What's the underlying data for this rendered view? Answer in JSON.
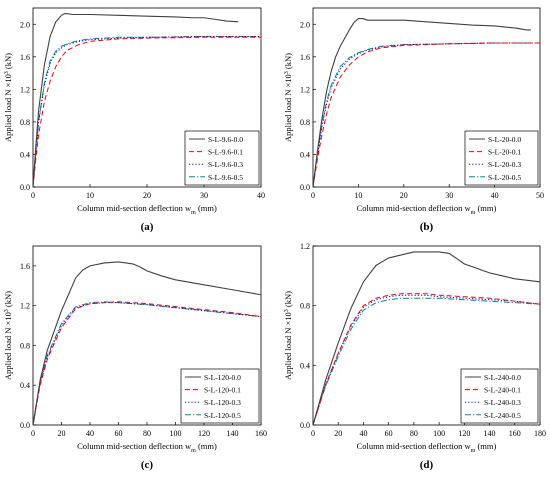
{
  "colors": {
    "series": [
      "#404040",
      "#ff0000",
      "#0000ff",
      "#008b8b"
    ],
    "axis": "#000000",
    "legend_border": "#000000"
  },
  "chart_data": [
    {
      "type": "line",
      "panel_label": "(a)",
      "xlabel": "Column mid-section deflection w",
      "xlabel_sub": "m",
      "xlabel_unit": " (mm)",
      "ylabel": "Applied load N ×10",
      "ylabel_sup": "3",
      "ylabel_unit": " (kN)",
      "xlim": [
        0,
        40
      ],
      "ylim": [
        0,
        2.2
      ],
      "xticks": [
        0,
        10,
        20,
        30,
        40
      ],
      "yticks": [
        0.0,
        0.4,
        0.8,
        1.2,
        1.6,
        2.0
      ],
      "ytick_labels": [
        "0.0",
        "0.4",
        "0.8",
        "1.2",
        "1.6",
        "2.0"
      ],
      "grid": false,
      "legend_position": "lower-right",
      "series": [
        {
          "name": "S-L-9.6-0.0",
          "style": "solid",
          "x": [
            0,
            0.5,
            1,
            2,
            3,
            4,
            5,
            5.5,
            6,
            7,
            8,
            10,
            15,
            20,
            25,
            28,
            30,
            32,
            34,
            36
          ],
          "y": [
            0,
            0.5,
            0.95,
            1.5,
            1.85,
            2.03,
            2.11,
            2.13,
            2.13,
            2.12,
            2.12,
            2.12,
            2.11,
            2.1,
            2.09,
            2.08,
            2.08,
            2.06,
            2.04,
            2.03
          ]
        },
        {
          "name": "S-L-9.6-0.1",
          "style": "dashed",
          "x": [
            0,
            0.5,
            1,
            2,
            3,
            4,
            5,
            6,
            8,
            10,
            15,
            20,
            30,
            40
          ],
          "y": [
            0,
            0.35,
            0.65,
            1.05,
            1.3,
            1.48,
            1.6,
            1.68,
            1.75,
            1.79,
            1.82,
            1.83,
            1.84,
            1.84
          ]
        },
        {
          "name": "S-L-9.6-0.3",
          "style": "dotted",
          "x": [
            0,
            0.5,
            1,
            2,
            3,
            4,
            5,
            6,
            8,
            10,
            15,
            20,
            30,
            40
          ],
          "y": [
            0,
            0.4,
            0.8,
            1.25,
            1.52,
            1.65,
            1.71,
            1.75,
            1.79,
            1.81,
            1.83,
            1.84,
            1.85,
            1.85
          ]
        },
        {
          "name": "S-L-9.6-0.5",
          "style": "dashdot",
          "x": [
            0,
            0.5,
            1,
            2,
            3,
            4,
            5,
            6,
            8,
            10,
            15,
            20,
            30,
            40
          ],
          "y": [
            0,
            0.42,
            0.82,
            1.28,
            1.55,
            1.67,
            1.73,
            1.76,
            1.8,
            1.82,
            1.84,
            1.84,
            1.85,
            1.85
          ]
        }
      ]
    },
    {
      "type": "line",
      "panel_label": "(b)",
      "xlabel": "Column mid-section deflection w",
      "xlabel_sub": "m",
      "xlabel_unit": " (mm)",
      "ylabel": "Applied load N ×10",
      "ylabel_sup": "3",
      "ylabel_unit": " (kN)",
      "xlim": [
        0,
        50
      ],
      "ylim": [
        0,
        2.2
      ],
      "xticks": [
        0,
        10,
        20,
        30,
        40,
        50
      ],
      "yticks": [
        0.0,
        0.4,
        0.8,
        1.2,
        1.6,
        2.0
      ],
      "ytick_labels": [
        "0.0",
        "0.4",
        "0.8",
        "1.2",
        "1.6",
        "2.0"
      ],
      "grid": false,
      "legend_position": "lower-right",
      "series": [
        {
          "name": "S-L-20-0.0",
          "style": "solid",
          "x": [
            0,
            1,
            2,
            3,
            4,
            5,
            6,
            7,
            8,
            9,
            10,
            11,
            12,
            15,
            20,
            25,
            30,
            35,
            40,
            45,
            47,
            48
          ],
          "y": [
            0,
            0.45,
            0.85,
            1.18,
            1.42,
            1.6,
            1.73,
            1.83,
            1.93,
            2.02,
            2.07,
            2.07,
            2.05,
            2.05,
            2.05,
            2.03,
            2.01,
            1.99,
            1.98,
            1.95,
            1.93,
            1.93
          ]
        },
        {
          "name": "S-L-20-0.1",
          "style": "dashed",
          "x": [
            0,
            1,
            2,
            3,
            4,
            6,
            8,
            10,
            12,
            15,
            20,
            30,
            40,
            50
          ],
          "y": [
            0,
            0.35,
            0.65,
            0.9,
            1.1,
            1.35,
            1.5,
            1.6,
            1.66,
            1.71,
            1.74,
            1.76,
            1.77,
            1.77
          ]
        },
        {
          "name": "S-L-20-0.3",
          "style": "dotted",
          "x": [
            0,
            1,
            2,
            3,
            4,
            6,
            8,
            10,
            12,
            15,
            20,
            30,
            40,
            50
          ],
          "y": [
            0,
            0.4,
            0.75,
            1.02,
            1.22,
            1.45,
            1.57,
            1.64,
            1.68,
            1.72,
            1.75,
            1.76,
            1.77,
            1.77
          ]
        },
        {
          "name": "S-L-20-0.5",
          "style": "dashdot",
          "x": [
            0,
            1,
            2,
            3,
            4,
            6,
            8,
            10,
            12,
            15,
            20,
            30,
            40,
            50
          ],
          "y": [
            0,
            0.42,
            0.78,
            1.05,
            1.25,
            1.48,
            1.59,
            1.65,
            1.69,
            1.73,
            1.75,
            1.76,
            1.77,
            1.77
          ]
        }
      ]
    },
    {
      "type": "line",
      "panel_label": "(c)",
      "xlabel": "Column mid-section deflection w",
      "xlabel_sub": "m",
      "xlabel_unit": " (mm)",
      "ylabel": "Applied load N ×10",
      "ylabel_sup": "3",
      "ylabel_unit": " (kN)",
      "xlim": [
        0,
        160
      ],
      "ylim": [
        0,
        1.8
      ],
      "xticks": [
        0,
        20,
        40,
        60,
        80,
        100,
        120,
        140,
        160
      ],
      "yticks": [
        0.0,
        0.4,
        0.8,
        1.2,
        1.6
      ],
      "ytick_labels": [
        "0.0",
        "0.4",
        "0.8",
        "1.2",
        "1.6"
      ],
      "grid": false,
      "legend_position": "lower-right",
      "series": [
        {
          "name": "S-L-120-0.0",
          "style": "solid",
          "x": [
            0,
            5,
            10,
            20,
            30,
            35,
            40,
            50,
            60,
            70,
            75,
            80,
            90,
            100,
            120,
            140,
            160
          ],
          "y": [
            0,
            0.45,
            0.75,
            1.15,
            1.48,
            1.56,
            1.6,
            1.63,
            1.64,
            1.62,
            1.59,
            1.55,
            1.5,
            1.46,
            1.41,
            1.36,
            1.31
          ]
        },
        {
          "name": "S-L-120-0.1",
          "style": "dashed",
          "x": [
            0,
            5,
            10,
            20,
            30,
            40,
            50,
            60,
            70,
            80,
            100,
            120,
            140,
            160
          ],
          "y": [
            0,
            0.4,
            0.66,
            0.98,
            1.17,
            1.22,
            1.23,
            1.24,
            1.23,
            1.22,
            1.19,
            1.16,
            1.13,
            1.09
          ]
        },
        {
          "name": "S-L-120-0.3",
          "style": "dotted",
          "x": [
            0,
            5,
            10,
            20,
            30,
            40,
            50,
            60,
            70,
            80,
            100,
            120,
            140,
            160
          ],
          "y": [
            0,
            0.42,
            0.68,
            1.0,
            1.18,
            1.22,
            1.23,
            1.23,
            1.22,
            1.21,
            1.18,
            1.15,
            1.12,
            1.09
          ]
        },
        {
          "name": "S-L-120-0.5",
          "style": "dashdot",
          "x": [
            0,
            5,
            10,
            20,
            30,
            40,
            50,
            60,
            70,
            80,
            100,
            120,
            140,
            160
          ],
          "y": [
            0,
            0.43,
            0.7,
            1.02,
            1.19,
            1.23,
            1.24,
            1.23,
            1.22,
            1.21,
            1.18,
            1.15,
            1.12,
            1.09
          ]
        }
      ]
    },
    {
      "type": "line",
      "panel_label": "(d)",
      "xlabel": "Column mid-section deflection w",
      "xlabel_sub": "m",
      "xlabel_unit": " (mm)",
      "ylabel": "Applied load N ×10",
      "ylabel_sup": "3",
      "ylabel_unit": " (kN)",
      "xlim": [
        0,
        180
      ],
      "ylim": [
        0,
        1.2
      ],
      "xticks": [
        0,
        20,
        40,
        60,
        80,
        100,
        120,
        140,
        160,
        180
      ],
      "yticks": [
        0.0,
        0.4,
        0.8,
        1.2
      ],
      "ytick_labels": [
        "0.0",
        "0.4",
        "0.8",
        "1.2"
      ],
      "grid": false,
      "legend_position": "lower-right",
      "series": [
        {
          "name": "S-L-240-0.0",
          "style": "solid",
          "x": [
            0,
            10,
            20,
            30,
            40,
            50,
            60,
            70,
            80,
            90,
            100,
            108,
            115,
            120,
            130,
            140,
            150,
            160,
            170,
            180
          ],
          "y": [
            0,
            0.3,
            0.55,
            0.78,
            0.96,
            1.07,
            1.12,
            1.14,
            1.16,
            1.16,
            1.16,
            1.15,
            1.11,
            1.08,
            1.05,
            1.02,
            1.0,
            0.98,
            0.97,
            0.96
          ]
        },
        {
          "name": "S-L-240-0.1",
          "style": "dashed",
          "x": [
            0,
            10,
            20,
            30,
            40,
            50,
            60,
            70,
            80,
            90,
            100,
            120,
            140,
            160,
            180
          ],
          "y": [
            0,
            0.27,
            0.48,
            0.67,
            0.8,
            0.85,
            0.87,
            0.88,
            0.88,
            0.88,
            0.87,
            0.86,
            0.85,
            0.83,
            0.81
          ]
        },
        {
          "name": "S-L-240-0.3",
          "style": "dotted",
          "x": [
            0,
            10,
            20,
            30,
            40,
            50,
            60,
            70,
            80,
            90,
            100,
            120,
            140,
            160,
            180
          ],
          "y": [
            0,
            0.27,
            0.48,
            0.66,
            0.79,
            0.84,
            0.86,
            0.87,
            0.87,
            0.87,
            0.86,
            0.85,
            0.84,
            0.83,
            0.81
          ]
        },
        {
          "name": "S-L-240-0.5",
          "style": "dashdot",
          "x": [
            0,
            10,
            20,
            30,
            40,
            50,
            60,
            70,
            80,
            90,
            100,
            120,
            140,
            160,
            180
          ],
          "y": [
            0,
            0.26,
            0.46,
            0.64,
            0.77,
            0.82,
            0.84,
            0.85,
            0.85,
            0.85,
            0.85,
            0.84,
            0.83,
            0.82,
            0.81
          ]
        }
      ]
    }
  ]
}
